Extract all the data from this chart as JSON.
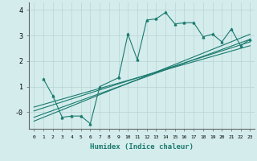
{
  "title": "",
  "xlabel": "Humidex (Indice chaleur)",
  "bg_color": "#d4ecec",
  "line_color": "#1a7a6e",
  "grid_color": "#b8d4d4",
  "xlim": [
    -0.5,
    23.5
  ],
  "ylim": [
    -0.65,
    4.3
  ],
  "xticks": [
    0,
    1,
    2,
    3,
    4,
    5,
    6,
    7,
    8,
    9,
    10,
    11,
    12,
    13,
    14,
    15,
    16,
    17,
    18,
    19,
    20,
    21,
    22,
    23
  ],
  "yticks": [
    0,
    1,
    2,
    3,
    4
  ],
  "ytick_labels": [
    "-0",
    "1",
    "2",
    "3",
    "4"
  ],
  "series1_x": [
    1,
    2,
    3,
    4,
    5,
    6,
    7,
    9,
    10,
    11,
    12,
    13,
    14,
    15,
    16,
    17,
    18,
    19,
    20,
    21,
    22,
    23
  ],
  "series1_y": [
    1.3,
    0.65,
    -0.2,
    -0.15,
    -0.15,
    -0.45,
    1.0,
    1.35,
    3.05,
    2.05,
    3.6,
    3.65,
    3.9,
    3.45,
    3.5,
    3.5,
    2.95,
    3.05,
    2.75,
    3.25,
    2.6,
    2.85
  ],
  "line1_x": [
    0,
    23
  ],
  "line1_y": [
    -0.35,
    3.05
  ],
  "line2_x": [
    0,
    23
  ],
  "line2_y": [
    -0.2,
    2.85
  ],
  "line3_x": [
    0,
    23
  ],
  "line3_y": [
    0.05,
    2.75
  ],
  "line4_x": [
    0,
    23
  ],
  "line4_y": [
    0.2,
    2.6
  ]
}
